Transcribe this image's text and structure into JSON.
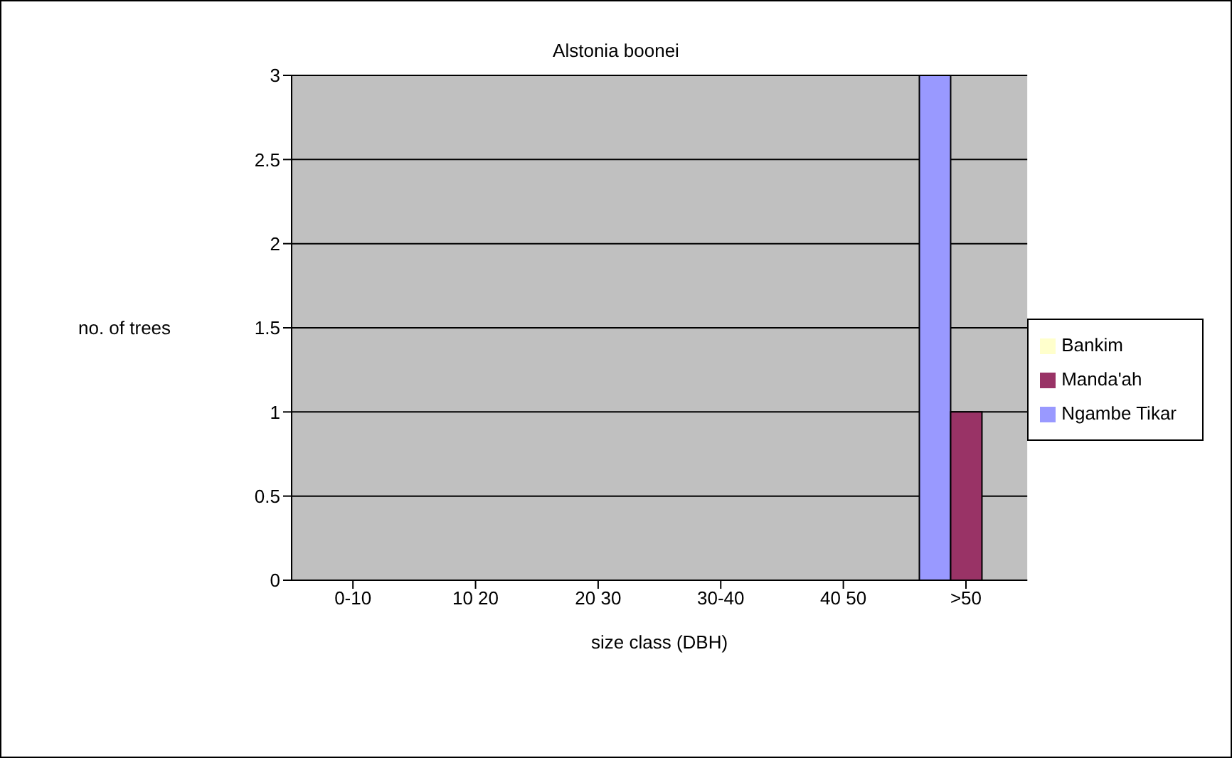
{
  "chart_data": {
    "type": "bar",
    "title": "Alstonia boonei",
    "xlabel": "size class (DBH)",
    "ylabel": "no. of trees",
    "categories": [
      "0-10",
      "10  20",
      "20  30",
      "30-40",
      "40  50",
      ">50"
    ],
    "series": [
      {
        "name": "Ngambe Tikar",
        "color": "#9999ff",
        "values": [
          0,
          0,
          0,
          0,
          0,
          3
        ]
      },
      {
        "name": "Manda'ah",
        "color": "#993366",
        "values": [
          0,
          0,
          0,
          0,
          0,
          1
        ]
      },
      {
        "name": "Bankim",
        "color": "#ffffcc",
        "values": [
          0,
          0,
          0,
          0,
          0,
          0
        ]
      }
    ],
    "ylim": [
      0,
      3
    ],
    "yticks": [
      0,
      0.5,
      1,
      1.5,
      2,
      2.5,
      3
    ],
    "grid": "y",
    "legend": "right"
  }
}
